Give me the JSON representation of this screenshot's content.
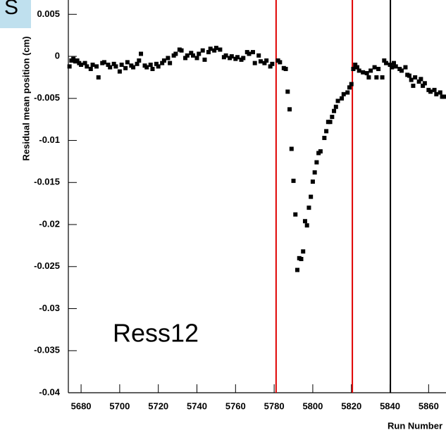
{
  "chart_data": {
    "type": "scatter",
    "corner_label": "S",
    "y_label": "Residual mean position (cm)",
    "x_label": "Run Number",
    "annotation": "Ress12",
    "color": "#000000",
    "xlim": [
      5673.4,
      5869
    ],
    "ylim": [
      -0.04,
      0.0067
    ],
    "xticks": [
      5680,
      5700,
      5720,
      5740,
      5760,
      5780,
      5800,
      5820,
      5840,
      5860
    ],
    "yticks": [
      0.005,
      0,
      -0.005,
      -0.01,
      -0.015,
      -0.02,
      -0.025,
      -0.03,
      -0.035,
      -0.04
    ],
    "vlines": [
      {
        "value": 5781,
        "color": "#e00000"
      },
      {
        "value": 5820.5,
        "color": "#e00000"
      },
      {
        "value": 5840.2,
        "color": "#000000"
      }
    ],
    "x": [
      5674,
      5675,
      5676,
      5677,
      5678,
      5679,
      5680,
      5682,
      5683,
      5685,
      5686,
      5688,
      5689,
      5691,
      5692,
      5694,
      5695,
      5697,
      5698,
      5700,
      5701,
      5703,
      5704,
      5706,
      5707,
      5709,
      5710,
      5711,
      5713,
      5714,
      5716,
      5717,
      5719,
      5720,
      5722,
      5723,
      5725,
      5726,
      5728,
      5729,
      5731,
      5732,
      5734,
      5735,
      5737,
      5738,
      5740,
      5741,
      5743,
      5744,
      5746,
      5747,
      5749,
      5750,
      5752,
      5754,
      5755,
      5757,
      5758,
      5760,
      5761,
      5763,
      5764,
      5766,
      5767,
      5769,
      5770,
      5772,
      5773,
      5775,
      5776,
      5778,
      5779,
      5782,
      5783,
      5785,
      5786,
      5787,
      5788,
      5789,
      5790,
      5791,
      5792,
      5793,
      5794,
      5795,
      5796,
      5797,
      5798,
      5799,
      5800,
      5801,
      5802,
      5803,
      5804,
      5806,
      5807,
      5808,
      5809,
      5810,
      5811,
      5812,
      5813,
      5815,
      5816,
      5818,
      5819,
      5820,
      5821,
      5822,
      5823,
      5824,
      5826,
      5828,
      5829,
      5830,
      5832,
      5833,
      5834,
      5836,
      5837,
      5838,
      5840,
      5841,
      5842,
      5843,
      5845,
      5846,
      5848,
      5849,
      5850,
      5851,
      5852,
      5853,
      5855,
      5856,
      5857,
      5858,
      5860,
      5861,
      5863,
      5864,
      5866,
      5867,
      5868
    ],
    "values": [
      -0.0012,
      -0.0005,
      -0.0003,
      -0.0006,
      -0.0005,
      -0.0008,
      -0.001,
      -0.0008,
      -0.0012,
      -0.0015,
      -0.001,
      -0.0012,
      -0.0025,
      -0.0008,
      -0.0007,
      -0.001,
      -0.0013,
      -0.0009,
      -0.0012,
      -0.0018,
      -0.001,
      -0.0014,
      -0.0007,
      -0.0011,
      -0.0013,
      -0.0009,
      -0.0005,
      0.0003,
      -0.0011,
      -0.0013,
      -0.001,
      -0.0015,
      -0.0009,
      -0.0012,
      -0.0008,
      -0.0005,
      -0.0002,
      -0.0008,
      0.0001,
      0.0003,
      0.0008,
      0.0007,
      -0.0002,
      0.0001,
      0.0004,
      0.0001,
      -0.0002,
      0.0003,
      0.0007,
      -0.0004,
      0.0005,
      0.0009,
      0.0007,
      0.001,
      0.0008,
      -0.0001,
      0.0001,
      -0.0002,
      0,
      -0.0003,
      -0.0001,
      -0.0004,
      -0.0002,
      0.0005,
      0.0003,
      0.0005,
      -0.0008,
      0.0001,
      -0.0006,
      -0.0008,
      -0.0005,
      -0.0012,
      -0.0009,
      -0.0005,
      -0.0007,
      -0.0014,
      -0.0015,
      -0.0042,
      -0.0063,
      -0.011,
      -0.0148,
      -0.0188,
      -0.0254,
      -0.024,
      -0.0241,
      -0.0232,
      -0.0196,
      -0.0201,
      -0.018,
      -0.0167,
      -0.0149,
      -0.0138,
      -0.0126,
      -0.0115,
      -0.0113,
      -0.0097,
      -0.0089,
      -0.0078,
      -0.0078,
      -0.0072,
      -0.0065,
      -0.006,
      -0.0053,
      -0.005,
      -0.0045,
      -0.0043,
      -0.0037,
      -0.0033,
      -0.0015,
      -0.001,
      -0.0013,
      -0.0017,
      -0.0019,
      -0.002,
      -0.0025,
      -0.0017,
      -0.0013,
      -0.0025,
      -0.0015,
      -0.0025,
      -0.0005,
      -0.0008,
      -0.001,
      -0.0013,
      -0.0008,
      -0.0012,
      -0.0015,
      -0.0017,
      -0.0013,
      -0.0022,
      -0.0023,
      -0.0028,
      -0.0035,
      -0.0025,
      -0.003,
      -0.0027,
      -0.0035,
      -0.0032,
      -0.004,
      -0.0042,
      -0.004,
      -0.0045,
      -0.0043,
      -0.0048,
      -0.0048
    ]
  }
}
